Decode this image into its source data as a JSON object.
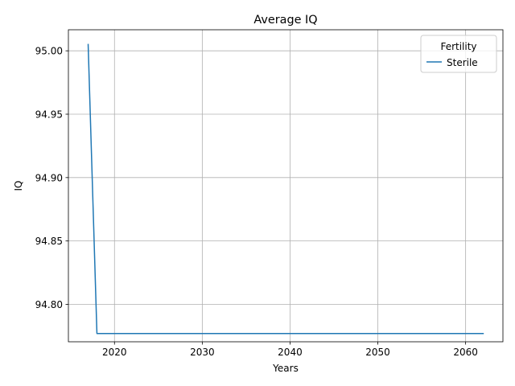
{
  "chart_data": {
    "type": "line",
    "title": "Average IQ",
    "xlabel": "Years",
    "ylabel": "IQ",
    "xlim": [
      2014.75,
      2064.25
    ],
    "ylim": [
      94.7705,
      95.0166
    ],
    "xticks": [
      2020,
      2030,
      2040,
      2050,
      2060
    ],
    "xtick_labels": [
      "2020",
      "2030",
      "2040",
      "2050",
      "2060"
    ],
    "yticks": [
      94.8,
      94.85,
      94.9,
      94.95,
      95.0
    ],
    "ytick_labels": [
      "94.80",
      "94.85",
      "94.90",
      "94.95",
      "95.00"
    ],
    "grid": true,
    "legend": {
      "title": "Fertility",
      "placement": "top-right",
      "entries": [
        "Sterile"
      ]
    },
    "series": [
      {
        "name": "Sterile",
        "color": "#1f77b4",
        "x": [
          2017,
          2018,
          2019,
          2020,
          2021,
          2022,
          2023,
          2024,
          2025,
          2026,
          2027,
          2028,
          2029,
          2030,
          2031,
          2032,
          2033,
          2034,
          2035,
          2036,
          2037,
          2038,
          2039,
          2040,
          2041,
          2042,
          2043,
          2044,
          2045,
          2046,
          2047,
          2048,
          2049,
          2050,
          2051,
          2052,
          2053,
          2054,
          2055,
          2056,
          2057,
          2058,
          2059,
          2060,
          2061,
          2062
        ],
        "y": [
          95.005,
          94.777,
          94.777,
          94.777,
          94.777,
          94.777,
          94.777,
          94.777,
          94.777,
          94.777,
          94.777,
          94.777,
          94.777,
          94.777,
          94.777,
          94.777,
          94.777,
          94.777,
          94.777,
          94.777,
          94.777,
          94.777,
          94.777,
          94.777,
          94.777,
          94.777,
          94.777,
          94.777,
          94.777,
          94.777,
          94.777,
          94.777,
          94.777,
          94.777,
          94.777,
          94.777,
          94.777,
          94.777,
          94.777,
          94.777,
          94.777,
          94.777,
          94.777,
          94.777,
          94.777,
          94.777
        ]
      }
    ]
  }
}
